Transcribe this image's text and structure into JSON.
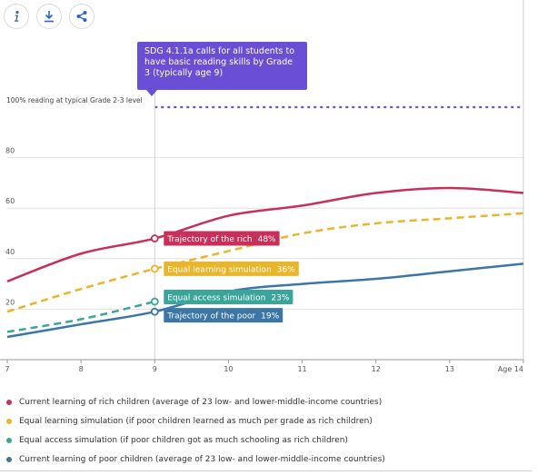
{
  "toolbar": [
    {
      "name": "info-button",
      "icon": "info-icon"
    },
    {
      "name": "download-button",
      "icon": "download-icon"
    },
    {
      "name": "share-button",
      "icon": "share-icon"
    }
  ],
  "colors": {
    "rich": "#c7305a",
    "equal_learning": "#e9b52a",
    "equal_access": "#3aa59a",
    "poor": "#3b76a6",
    "reference": "#6a4fd6",
    "grid": "#dddddd"
  },
  "tooltip": "SDG 4.1.1a calls for all students to have basic reading skills by Grade 3 (typically age 9)",
  "chart_data": {
    "type": "line",
    "x_tick_labels": [
      "7",
      "8",
      "9",
      "10",
      "11",
      "12",
      "13",
      "Age 14"
    ],
    "y_tick_labels": [
      "20",
      "40",
      "60",
      "80"
    ],
    "xlim": [
      7,
      14
    ],
    "ylim": [
      0,
      100
    ],
    "grid": true,
    "reference_line": {
      "value": 100,
      "label": "100% reading at typical Grade 2-3 level"
    },
    "marker_x": 9,
    "series": [
      {
        "key": "rich",
        "dashed": false,
        "x": [
          7,
          8,
          9,
          10,
          11,
          12,
          13,
          14
        ],
        "y": [
          31,
          42,
          48,
          57,
          61,
          66,
          68,
          66
        ]
      },
      {
        "key": "equal_learning",
        "dashed": true,
        "x": [
          7,
          8,
          9,
          10,
          11,
          12,
          13,
          14
        ],
        "y": [
          19,
          28,
          36,
          43,
          50,
          54,
          56,
          58
        ]
      },
      {
        "key": "equal_access",
        "dashed": true,
        "x": [
          7,
          8,
          9
        ],
        "y": [
          11,
          16,
          23
        ]
      },
      {
        "key": "poor",
        "dashed": false,
        "x": [
          7,
          8,
          9,
          10,
          11,
          12,
          13,
          14
        ],
        "y": [
          9,
          14,
          19,
          27,
          30,
          32,
          35,
          38
        ]
      }
    ],
    "annotations": [
      {
        "series": "rich",
        "text": "Trajectory of the rich",
        "value": "48%"
      },
      {
        "series": "equal_learning",
        "text": "Equal learning simulation",
        "value": "36%"
      },
      {
        "series": "equal_access",
        "text": "Equal access simulation",
        "value": "23%"
      },
      {
        "series": "poor",
        "text": "Trajectory of the poor",
        "value": "19%"
      }
    ],
    "legend": [
      {
        "series": "rich",
        "label": "Current learning of rich children (average of 23 low- and lower-middle-income countries)"
      },
      {
        "series": "equal_learning",
        "label": "Equal learning simulation (if poor children learned as much per grade as rich children)"
      },
      {
        "series": "equal_access",
        "label": "Equal access simulation (if poor children got as much schooling as rich children)"
      },
      {
        "series": "poor",
        "label": "Current learning of poor children (average of 23 low- and lower-middle-income countries)"
      }
    ]
  }
}
